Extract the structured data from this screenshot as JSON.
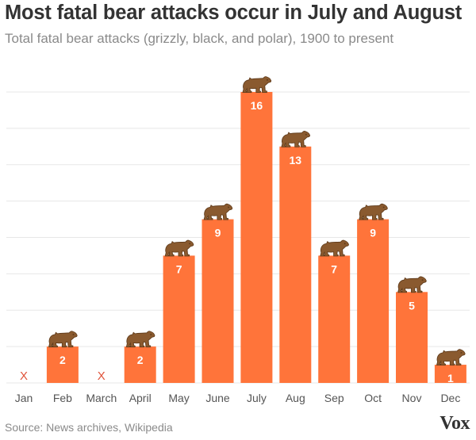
{
  "header": {
    "title": "Most fatal bear attacks occur in July and August",
    "subtitle": "Total fatal bear attacks (grizzly, black, and polar), 1900 to present"
  },
  "footer": {
    "source": "Source: News archives, Wikipedia",
    "logo": "Vox"
  },
  "colors": {
    "bar": "#ff743a",
    "bear": "#8a5a2f",
    "bear_dark": "#5e3a1a",
    "zero_marker": "#e0533a",
    "gridline": "#e7e7e7",
    "label_text": "#ffffff",
    "tick_text": "#555555"
  },
  "chart_data": {
    "type": "bar",
    "title": "Most fatal bear attacks occur in July and August",
    "subtitle": "Total fatal bear attacks (grizzly, black, and polar), 1900 to present",
    "categories": [
      "Jan",
      "Feb",
      "March",
      "April",
      "May",
      "June",
      "July",
      "Aug",
      "Sep",
      "Oct",
      "Nov",
      "Dec"
    ],
    "values": [
      0,
      2,
      0,
      2,
      7,
      9,
      16,
      13,
      7,
      9,
      5,
      1
    ],
    "data_labels": [
      "X",
      "2",
      "X",
      "2",
      "7",
      "9",
      "16",
      "13",
      "7",
      "9",
      "5",
      "1"
    ],
    "xlabel": "",
    "ylabel": "",
    "ylim": [
      0,
      16
    ],
    "grid": true,
    "y_tick_labels_shown": false,
    "marker_icon": "bear-icon",
    "zero_marker": "X"
  }
}
